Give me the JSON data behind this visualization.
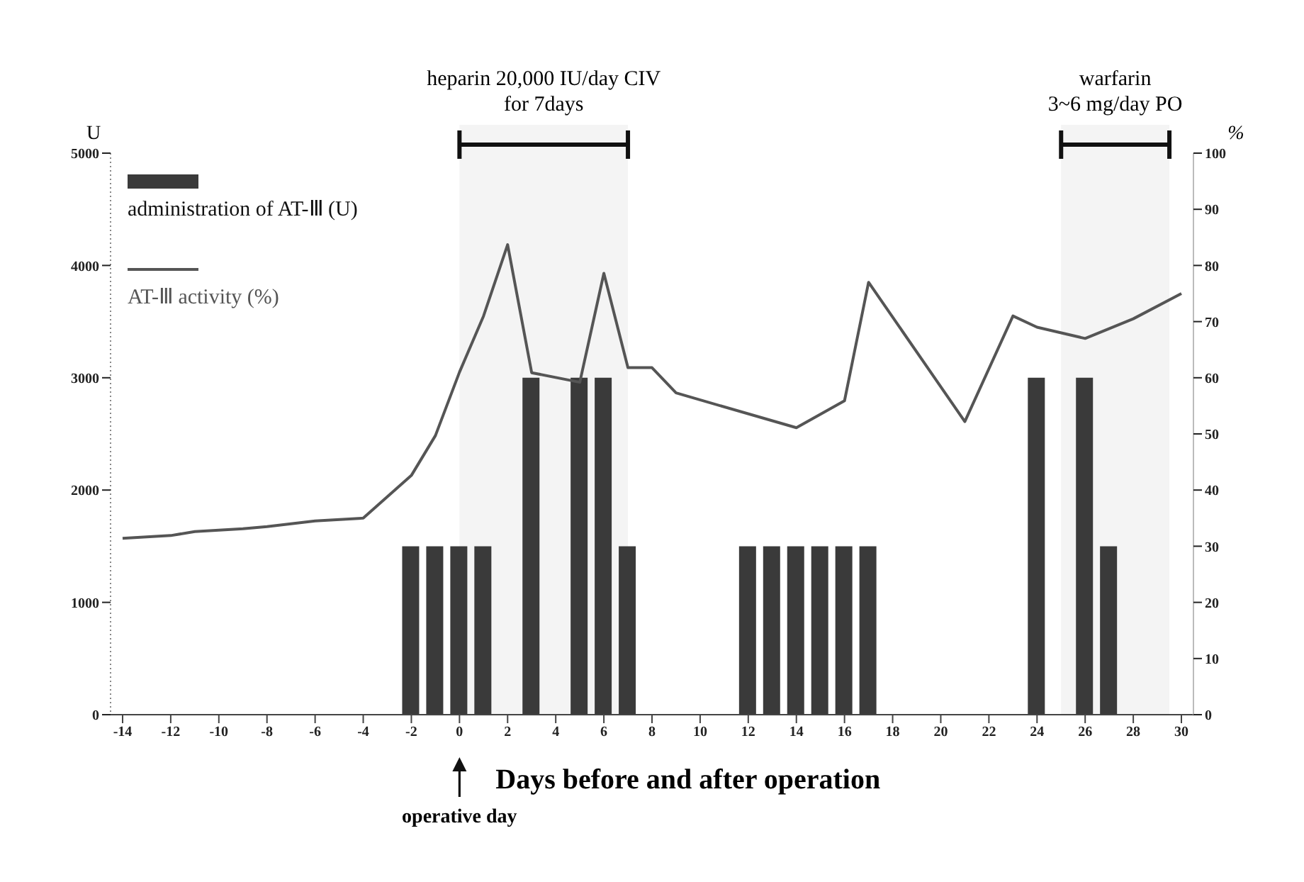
{
  "chart_data": {
    "type": "bar",
    "xlabel": "Days before and after operation",
    "ylabel": "U",
    "y2label": "%",
    "x": [
      -2,
      -1,
      0,
      1,
      3,
      5,
      6,
      7,
      12,
      13,
      14,
      15,
      16,
      17,
      24,
      26,
      27
    ],
    "series": [
      {
        "name": "administration of AT-Ⅲ (U)",
        "color": "#3a3a3a",
        "values": [
          1500,
          1500,
          1500,
          1500,
          3000,
          3000,
          3000,
          1500,
          1500,
          1500,
          1500,
          1500,
          1500,
          1500,
          3000,
          3000,
          1500
        ]
      },
      {
        "name": "AT-Ⅲ activity (%)",
        "type": "line",
        "axis": "y2",
        "color": "#555555",
        "x": [
          -14,
          -12,
          -11,
          -9,
          -8,
          -6,
          -4,
          -2,
          -1,
          0,
          1,
          2,
          3,
          5,
          6,
          7,
          8,
          9,
          14,
          16,
          17,
          21,
          23,
          24,
          26,
          28,
          30
        ],
        "values": [
          31.4,
          31.9,
          32.6,
          33.1,
          33.5,
          34.5,
          35,
          42.6,
          49.7,
          61,
          71,
          83.7,
          60.9,
          59.2,
          78.6,
          61.8,
          61.8,
          57.3,
          51.1,
          55.9,
          77,
          52.2,
          71,
          69,
          67,
          70.5,
          75
        ]
      }
    ],
    "xlim": [
      -14.5,
      30.5
    ],
    "xticks": [
      -14,
      -12,
      -10,
      -8,
      -6,
      -4,
      -2,
      0,
      2,
      4,
      6,
      8,
      10,
      12,
      14,
      16,
      18,
      20,
      22,
      24,
      26,
      28,
      30
    ],
    "ylim": [
      0,
      5000
    ],
    "yticks": [
      0,
      1000,
      2000,
      3000,
      4000,
      5000
    ],
    "y2lim": [
      0,
      100
    ],
    "y2ticks": [
      0,
      10,
      20,
      30,
      40,
      50,
      60,
      70,
      80,
      90,
      100
    ],
    "bands": [
      {
        "axis": "x",
        "from": 0,
        "to": 7,
        "label": "heparin  20,000 IU/day CIV\nfor 7days"
      },
      {
        "axis": "x",
        "from": 25,
        "to": 29.5,
        "label": "warfarin\n3~6 mg/day PO"
      }
    ],
    "annotations": [
      "operative day"
    ],
    "legend": "top left",
    "grid": false,
    "marker": "none"
  }
}
